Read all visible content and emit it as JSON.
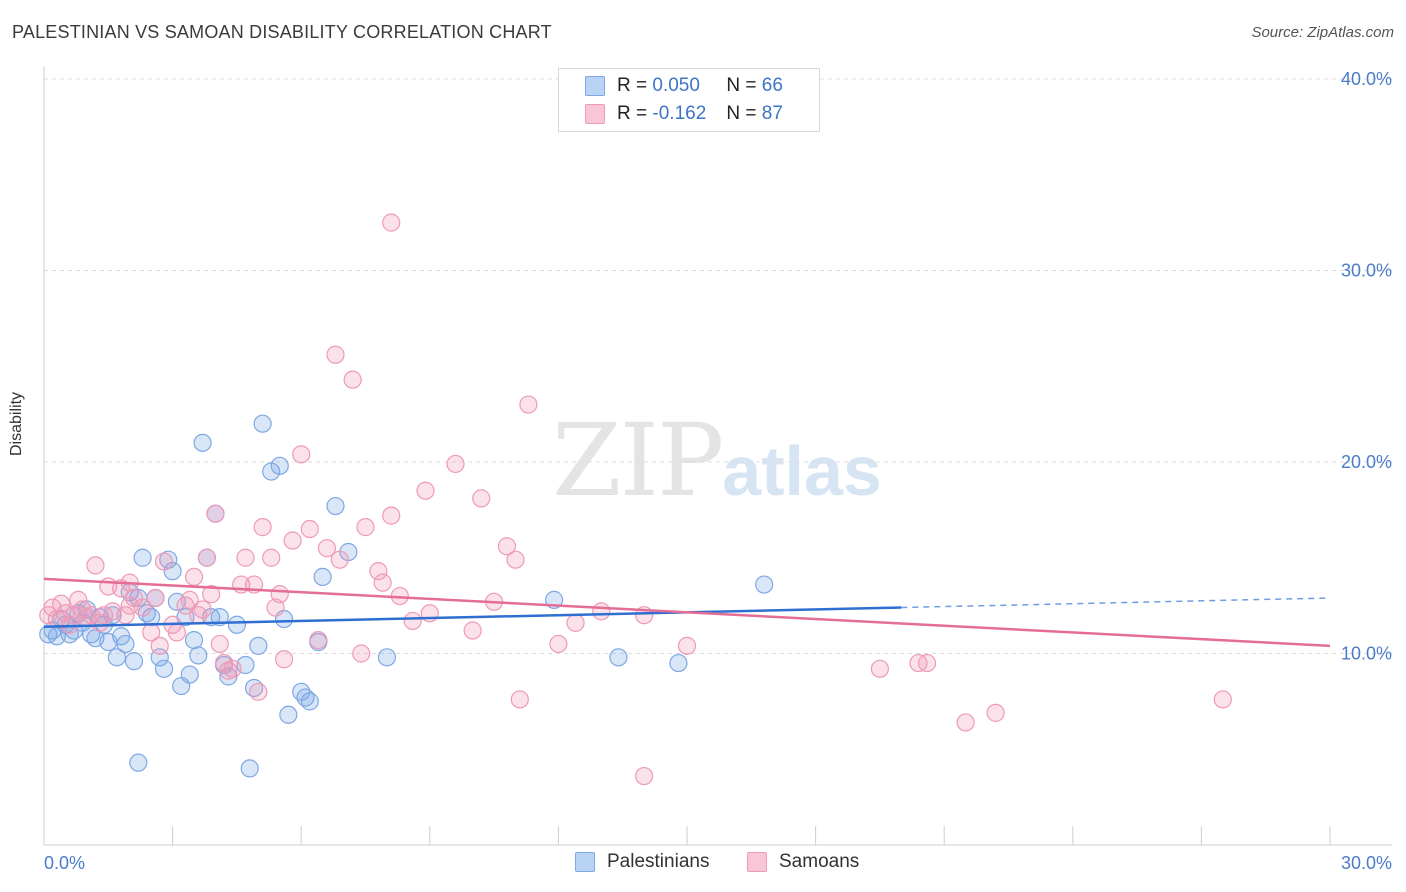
{
  "title": "PALESTINIAN VS SAMOAN DISABILITY CORRELATION CHART",
  "source": "Source: ZipAtlas.com",
  "watermark": {
    "zip": "ZIP",
    "atlas": "atlas"
  },
  "legend": {
    "r_label": "R =",
    "n_label": "N =",
    "series": [
      {
        "r": "0.050",
        "n": "66",
        "color": "#5b8fd9"
      },
      {
        "r": "-0.162",
        "n": "87",
        "color": "#ea7fa3"
      }
    ]
  },
  "bottom_legend": [
    "Palestinians",
    "Samoans"
  ],
  "chart_data": {
    "type": "scatter",
    "title": "PALESTINIAN VS SAMOAN DISABILITY CORRELATION CHART",
    "xlabel": "",
    "ylabel": "Disability",
    "xlim": [
      0,
      30
    ],
    "ylim": [
      0,
      40
    ],
    "x_tick_labels": [
      "0.0%",
      "30.0%"
    ],
    "y_tick_labels": [
      "10.0%",
      "20.0%",
      "30.0%",
      "40.0%"
    ],
    "y_ticks": [
      10,
      20,
      30,
      40
    ],
    "grid": true,
    "legend_position": "top-center",
    "series": [
      {
        "name": "Palestinians",
        "color": "#5b8fd9",
        "trend": {
          "x0": 0,
          "y0": 11.4,
          "x1": 20,
          "y1": 12.4,
          "dashed_to": 30,
          "dashed_y": 12.9
        },
        "points": [
          [
            0.1,
            11.0
          ],
          [
            0.2,
            11.2
          ],
          [
            0.3,
            10.9
          ],
          [
            0.4,
            11.8
          ],
          [
            0.5,
            11.5
          ],
          [
            0.6,
            11.0
          ],
          [
            0.7,
            11.2
          ],
          [
            0.8,
            12.1
          ],
          [
            0.9,
            11.6
          ],
          [
            1.0,
            12.3
          ],
          [
            1.1,
            11.0
          ],
          [
            1.2,
            10.8
          ],
          [
            1.3,
            11.9
          ],
          [
            1.4,
            11.5
          ],
          [
            1.5,
            10.6
          ],
          [
            1.6,
            12.0
          ],
          [
            1.7,
            9.8
          ],
          [
            1.8,
            10.9
          ],
          [
            1.9,
            10.5
          ],
          [
            2.0,
            13.2
          ],
          [
            2.1,
            9.6
          ],
          [
            2.2,
            12.9
          ],
          [
            2.3,
            15.0
          ],
          [
            2.4,
            12.1
          ],
          [
            2.5,
            11.9
          ],
          [
            2.6,
            12.9
          ],
          [
            2.7,
            9.8
          ],
          [
            2.8,
            9.2
          ],
          [
            2.9,
            14.9
          ],
          [
            3.0,
            14.3
          ],
          [
            3.1,
            12.7
          ],
          [
            3.2,
            8.3
          ],
          [
            3.3,
            11.9
          ],
          [
            3.4,
            8.9
          ],
          [
            3.5,
            10.7
          ],
          [
            3.6,
            9.9
          ],
          [
            3.7,
            21.0
          ],
          [
            3.8,
            15.0
          ],
          [
            3.9,
            11.9
          ],
          [
            4.0,
            17.3
          ],
          [
            4.1,
            11.9
          ],
          [
            4.2,
            9.4
          ],
          [
            4.3,
            8.8
          ],
          [
            4.5,
            11.5
          ],
          [
            4.7,
            9.4
          ],
          [
            4.9,
            8.2
          ],
          [
            5.0,
            10.4
          ],
          [
            5.1,
            22.0
          ],
          [
            5.3,
            19.5
          ],
          [
            5.5,
            19.8
          ],
          [
            5.6,
            11.8
          ],
          [
            5.7,
            6.8
          ],
          [
            6.0,
            8.0
          ],
          [
            6.1,
            7.7
          ],
          [
            6.2,
            7.5
          ],
          [
            6.4,
            10.6
          ],
          [
            6.5,
            14.0
          ],
          [
            6.8,
            17.7
          ],
          [
            7.1,
            15.3
          ],
          [
            8.0,
            9.8
          ],
          [
            11.9,
            12.8
          ],
          [
            13.4,
            9.8
          ],
          [
            14.8,
            9.5
          ],
          [
            16.8,
            13.6
          ],
          [
            2.2,
            4.3
          ],
          [
            4.8,
            4.0
          ]
        ]
      },
      {
        "name": "Samoans",
        "color": "#ea7fa3",
        "trend": {
          "x0": 0,
          "y0": 13.9,
          "x1": 30,
          "y1": 10.4
        },
        "points": [
          [
            0.1,
            12.0
          ],
          [
            0.2,
            12.4
          ],
          [
            0.3,
            11.8
          ],
          [
            0.4,
            12.6
          ],
          [
            0.5,
            12.1
          ],
          [
            0.6,
            11.5
          ],
          [
            0.7,
            12.0
          ],
          [
            0.8,
            12.8
          ],
          [
            1.0,
            11.9
          ],
          [
            1.2,
            14.6
          ],
          [
            1.3,
            11.6
          ],
          [
            1.4,
            12.0
          ],
          [
            1.6,
            12.2
          ],
          [
            1.8,
            13.4
          ],
          [
            1.9,
            12.0
          ],
          [
            2.0,
            13.7
          ],
          [
            2.1,
            12.9
          ],
          [
            2.3,
            12.4
          ],
          [
            2.5,
            11.1
          ],
          [
            2.6,
            12.9
          ],
          [
            2.7,
            10.4
          ],
          [
            2.8,
            14.8
          ],
          [
            3.0,
            11.5
          ],
          [
            3.1,
            11.1
          ],
          [
            3.3,
            12.5
          ],
          [
            3.4,
            12.8
          ],
          [
            3.5,
            14.0
          ],
          [
            3.7,
            12.3
          ],
          [
            3.8,
            15.0
          ],
          [
            3.9,
            13.1
          ],
          [
            4.0,
            17.3
          ],
          [
            4.1,
            10.5
          ],
          [
            4.2,
            9.5
          ],
          [
            4.3,
            9.1
          ],
          [
            4.6,
            13.6
          ],
          [
            4.7,
            15.0
          ],
          [
            4.9,
            13.6
          ],
          [
            5.1,
            16.6
          ],
          [
            5.3,
            15.0
          ],
          [
            5.4,
            12.4
          ],
          [
            5.5,
            13.1
          ],
          [
            5.8,
            15.9
          ],
          [
            6.0,
            20.4
          ],
          [
            6.2,
            16.5
          ],
          [
            6.4,
            10.7
          ],
          [
            6.6,
            15.5
          ],
          [
            6.8,
            25.6
          ],
          [
            7.2,
            24.3
          ],
          [
            7.5,
            16.6
          ],
          [
            7.8,
            14.3
          ],
          [
            7.9,
            13.7
          ],
          [
            8.1,
            17.2
          ],
          [
            8.3,
            13.0
          ],
          [
            8.6,
            11.7
          ],
          [
            8.9,
            18.5
          ],
          [
            9.0,
            12.1
          ],
          [
            9.6,
            19.9
          ],
          [
            10.0,
            11.2
          ],
          [
            10.2,
            18.1
          ],
          [
            10.5,
            12.7
          ],
          [
            10.8,
            15.6
          ],
          [
            11.0,
            14.9
          ],
          [
            11.3,
            23.0
          ],
          [
            12.0,
            10.5
          ],
          [
            12.4,
            11.6
          ],
          [
            13.0,
            12.2
          ],
          [
            14.0,
            12.0
          ],
          [
            15.0,
            10.4
          ],
          [
            19.5,
            9.2
          ],
          [
            20.4,
            9.5
          ],
          [
            20.6,
            9.5
          ],
          [
            21.5,
            6.4
          ],
          [
            22.2,
            6.9
          ],
          [
            27.5,
            7.6
          ],
          [
            8.1,
            32.5
          ],
          [
            14.0,
            3.6
          ],
          [
            11.1,
            7.6
          ],
          [
            1.5,
            13.5
          ],
          [
            2.0,
            12.5
          ],
          [
            4.4,
            9.2
          ],
          [
            5.6,
            9.7
          ],
          [
            7.4,
            10.0
          ],
          [
            0.9,
            12.3
          ],
          [
            1.1,
            12.0
          ],
          [
            3.6,
            12.0
          ],
          [
            5.0,
            8.0
          ],
          [
            6.9,
            14.9
          ]
        ]
      }
    ]
  }
}
